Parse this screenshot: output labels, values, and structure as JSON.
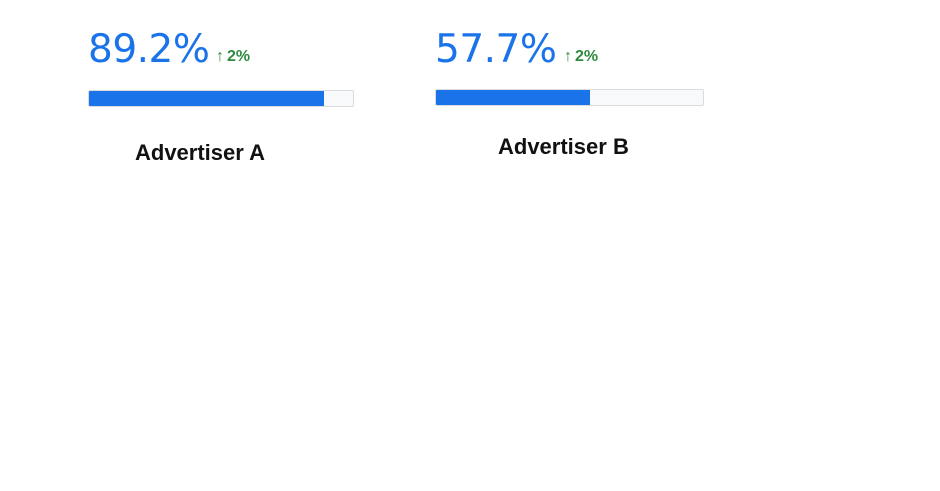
{
  "cards": [
    {
      "value": "89.2%",
      "delta_arrow": "↑",
      "delta": "2%",
      "progress_fraction": 0.892,
      "label": "Advertiser A"
    },
    {
      "value": "57.7%",
      "delta_arrow": "↑",
      "delta": "2%",
      "progress_fraction": 0.577,
      "label": "Advertiser B"
    }
  ],
  "colors": {
    "value": "#1a73e8",
    "delta": "#2e8b3f",
    "bar_fill": "#1a73e8",
    "bar_track": "#f8f9fa",
    "label": "#111111"
  },
  "icons": {
    "delta_icon": "arrow-up-icon"
  }
}
